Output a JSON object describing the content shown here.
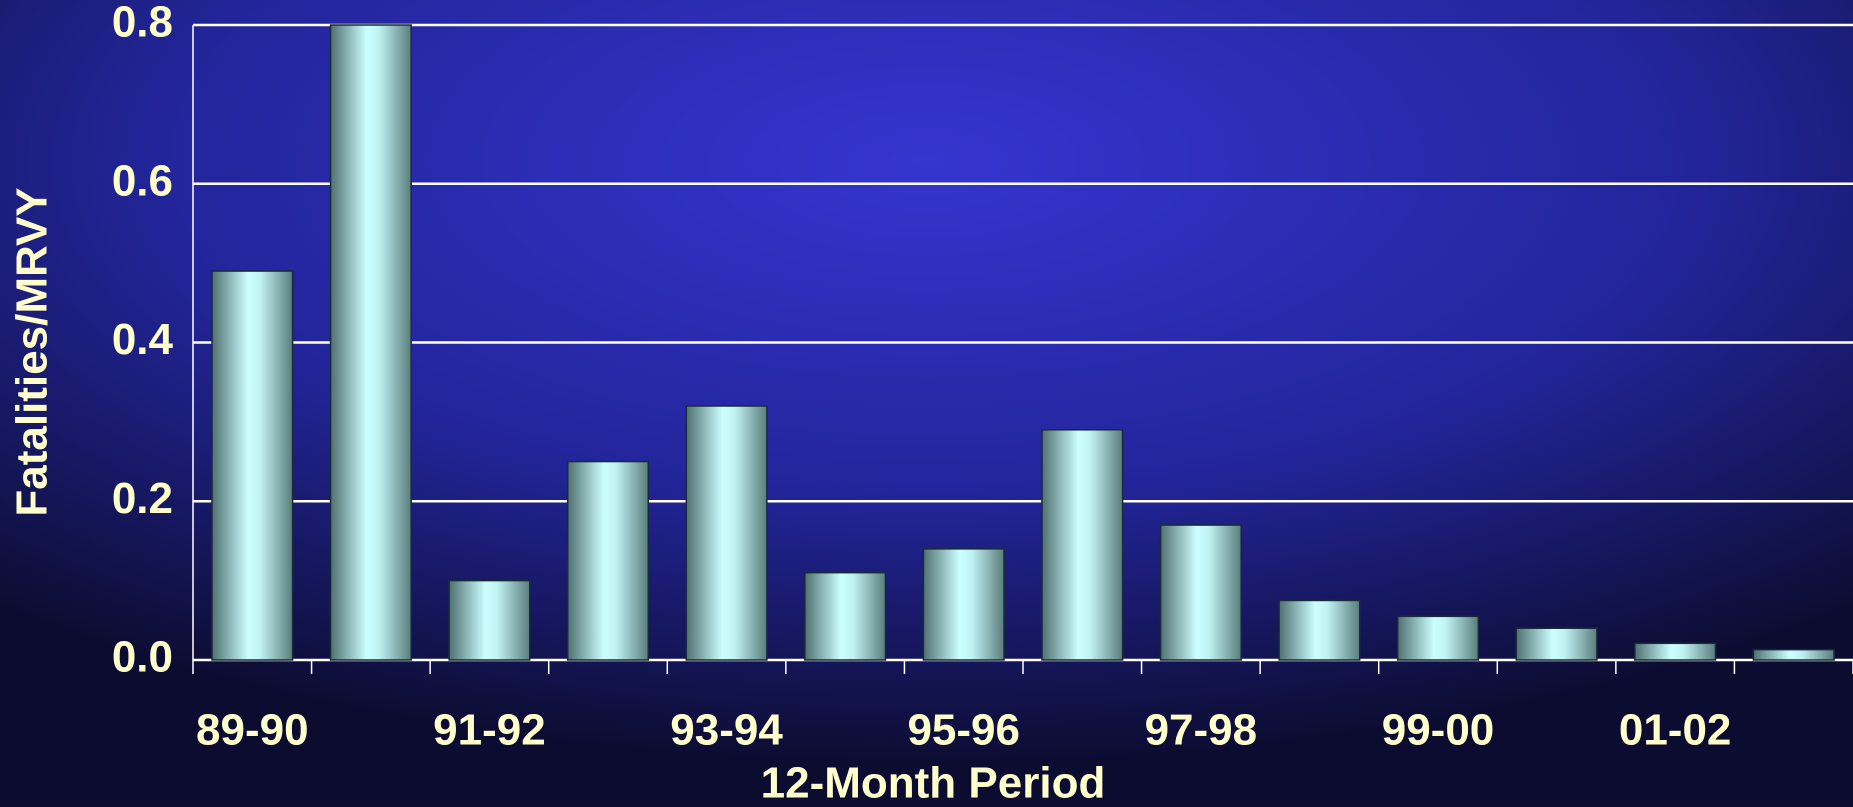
{
  "chart_data": {
    "type": "bar",
    "ylabel": "Fatalities/MRVY",
    "xlabel": "12-Month Period",
    "categories": [
      "89-90",
      null,
      "91-92",
      null,
      "93-94",
      null,
      "95-96",
      null,
      "97-98",
      null,
      "99-00",
      null,
      "01-02",
      null
    ],
    "values": [
      0.49,
      0.8,
      0.1,
      0.25,
      0.32,
      0.11,
      0.14,
      0.29,
      0.17,
      0.075,
      0.055,
      0.04,
      0.021,
      0.013
    ],
    "color": "#ccffff",
    "ylim": [
      0,
      0.8
    ],
    "yticks": [
      {
        "value": 0,
        "label": "0.0"
      },
      0.2,
      0.4,
      0.6,
      0.8
    ],
    "grid": true
  }
}
